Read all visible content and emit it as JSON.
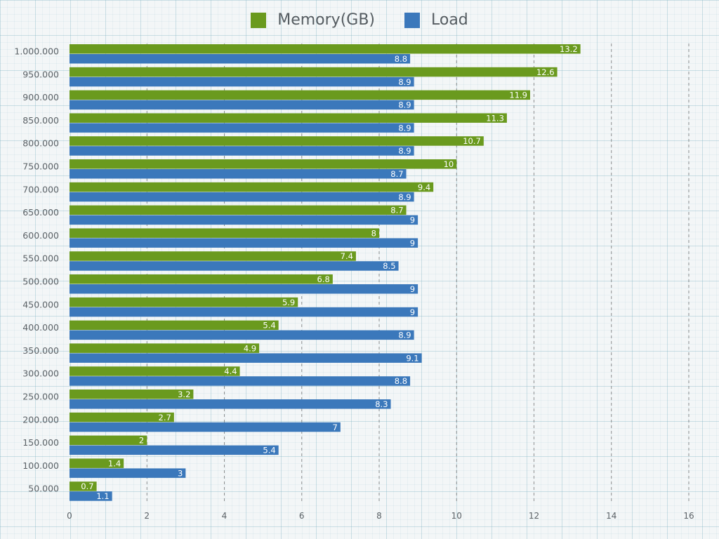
{
  "legend": {
    "series_a": "Memory(GB)",
    "series_b": "Load"
  },
  "colors": {
    "memory": "#6a9a1e",
    "load": "#3b78bb",
    "grid_dash": "#777777",
    "label_text": "#5a6166"
  },
  "chart_data": {
    "type": "bar",
    "orientation": "horizontal",
    "categories": [
      "1.000.000",
      "950.000",
      "900.000",
      "850.000",
      "800.000",
      "750.000",
      "700.000",
      "650.000",
      "600.000",
      "550.000",
      "500.000",
      "450.000",
      "400.000",
      "350.000",
      "300.000",
      "250.000",
      "200.000",
      "150.000",
      "100.000",
      "50.000"
    ],
    "series": [
      {
        "name": "Memory(GB)",
        "values": [
          13.2,
          12.6,
          11.9,
          11.3,
          10.7,
          10,
          9.4,
          8.7,
          8,
          7.4,
          6.8,
          5.9,
          5.4,
          4.9,
          4.4,
          3.2,
          2.7,
          2,
          1.4,
          0.7
        ]
      },
      {
        "name": "Load",
        "values": [
          8.8,
          8.9,
          8.9,
          8.9,
          8.9,
          8.7,
          8.9,
          9,
          9,
          8.5,
          9,
          9,
          8.9,
          9.1,
          8.8,
          8.3,
          7,
          5.4,
          3,
          1.1
        ]
      }
    ],
    "xlim": [
      0,
      16
    ],
    "xticks": [
      0,
      2,
      4,
      6,
      8,
      10,
      12,
      14,
      16
    ],
    "grid": "vertical-dashed",
    "legend_position": "top-center",
    "data_labels": true
  }
}
